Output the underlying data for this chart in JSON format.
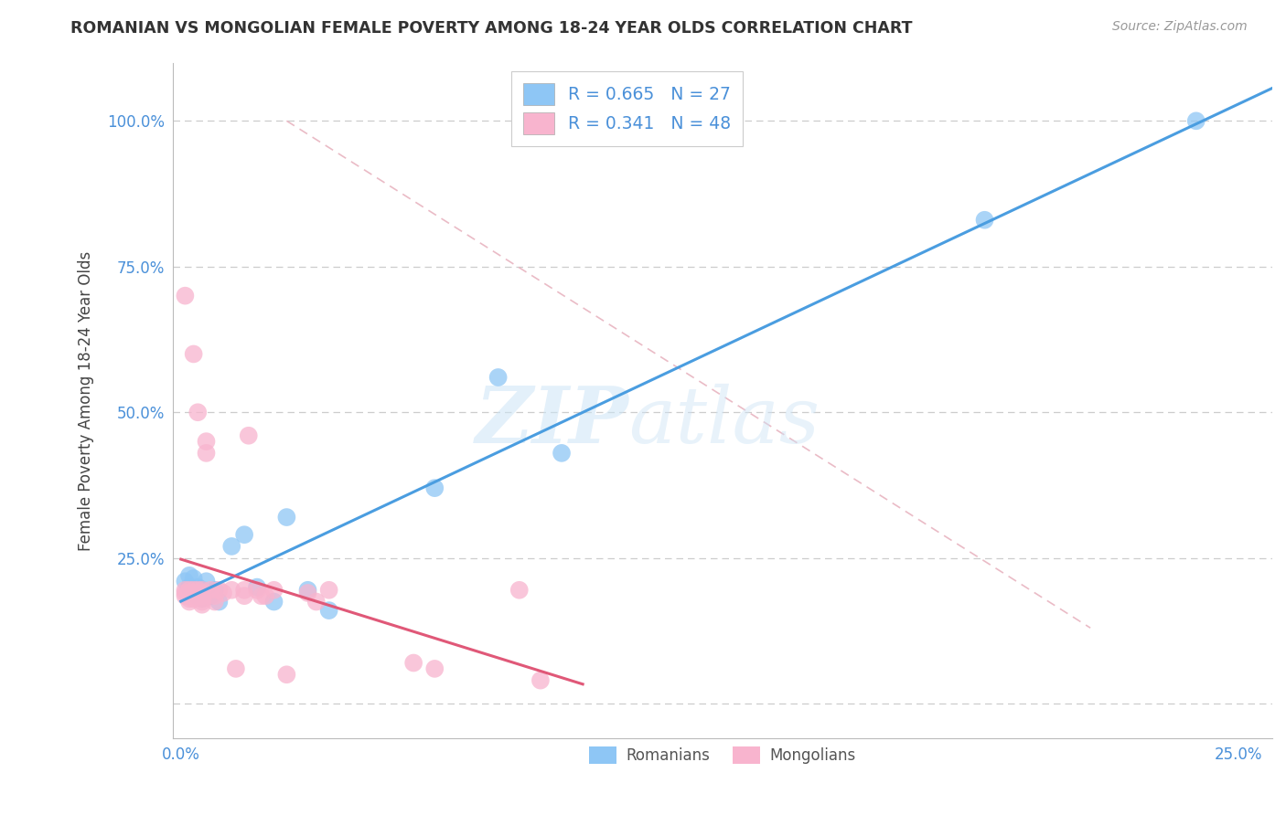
{
  "title": "ROMANIAN VS MONGOLIAN FEMALE POVERTY AMONG 18-24 YEAR OLDS CORRELATION CHART",
  "source": "Source: ZipAtlas.com",
  "ylabel": "Female Poverty Among 18-24 Year Olds",
  "xlim": [
    -0.002,
    0.258
  ],
  "ylim": [
    -0.06,
    1.1
  ],
  "x_ticks": [
    0.0,
    0.05,
    0.1,
    0.15,
    0.2,
    0.25
  ],
  "x_tick_labels": [
    "0.0%",
    "",
    "",
    "",
    "",
    "25.0%"
  ],
  "y_ticks": [
    0.0,
    0.25,
    0.5,
    0.75,
    1.0
  ],
  "y_tick_labels": [
    "",
    "25.0%",
    "50.0%",
    "75.0%",
    "100.0%"
  ],
  "romanian_color": "#8ec6f5",
  "mongolian_color": "#f8b4ce",
  "romanian_R": 0.665,
  "romanian_N": 27,
  "mongolian_R": 0.341,
  "mongolian_N": 48,
  "watermark_zip": "ZIP",
  "watermark_atlas": "atlas",
  "background_color": "#ffffff",
  "grid_color": "#cccccc",
  "blue_line_color": "#4a9de0",
  "pink_line_color": "#e05878",
  "diag_color": "#e8b4c0",
  "romanian_scatter_x": [
    0.001,
    0.002,
    0.002,
    0.003,
    0.003,
    0.003,
    0.004,
    0.004,
    0.005,
    0.005,
    0.006,
    0.006,
    0.007,
    0.008,
    0.009,
    0.012,
    0.015,
    0.018,
    0.022,
    0.025,
    0.03,
    0.035,
    0.06,
    0.075,
    0.09,
    0.19,
    0.24
  ],
  "romanian_scatter_y": [
    0.21,
    0.2,
    0.22,
    0.195,
    0.19,
    0.215,
    0.185,
    0.2,
    0.195,
    0.18,
    0.21,
    0.19,
    0.185,
    0.195,
    0.175,
    0.27,
    0.29,
    0.2,
    0.175,
    0.32,
    0.195,
    0.16,
    0.37,
    0.56,
    0.43,
    0.83,
    1.0
  ],
  "mongolian_scatter_x": [
    0.001,
    0.001,
    0.001,
    0.001,
    0.002,
    0.002,
    0.002,
    0.002,
    0.002,
    0.003,
    0.003,
    0.003,
    0.003,
    0.003,
    0.004,
    0.004,
    0.004,
    0.004,
    0.005,
    0.005,
    0.005,
    0.005,
    0.005,
    0.005,
    0.006,
    0.006,
    0.007,
    0.008,
    0.008,
    0.009,
    0.01,
    0.012,
    0.013,
    0.015,
    0.015,
    0.016,
    0.018,
    0.019,
    0.02,
    0.022,
    0.025,
    0.03,
    0.032,
    0.035,
    0.055,
    0.06,
    0.08,
    0.085
  ],
  "mongolian_scatter_y": [
    0.7,
    0.195,
    0.19,
    0.185,
    0.195,
    0.19,
    0.185,
    0.18,
    0.175,
    0.195,
    0.19,
    0.185,
    0.18,
    0.6,
    0.195,
    0.19,
    0.185,
    0.5,
    0.195,
    0.19,
    0.185,
    0.18,
    0.175,
    0.17,
    0.45,
    0.43,
    0.195,
    0.185,
    0.175,
    0.195,
    0.19,
    0.195,
    0.06,
    0.195,
    0.185,
    0.46,
    0.195,
    0.185,
    0.185,
    0.195,
    0.05,
    0.19,
    0.175,
    0.195,
    0.07,
    0.06,
    0.195,
    0.04
  ]
}
